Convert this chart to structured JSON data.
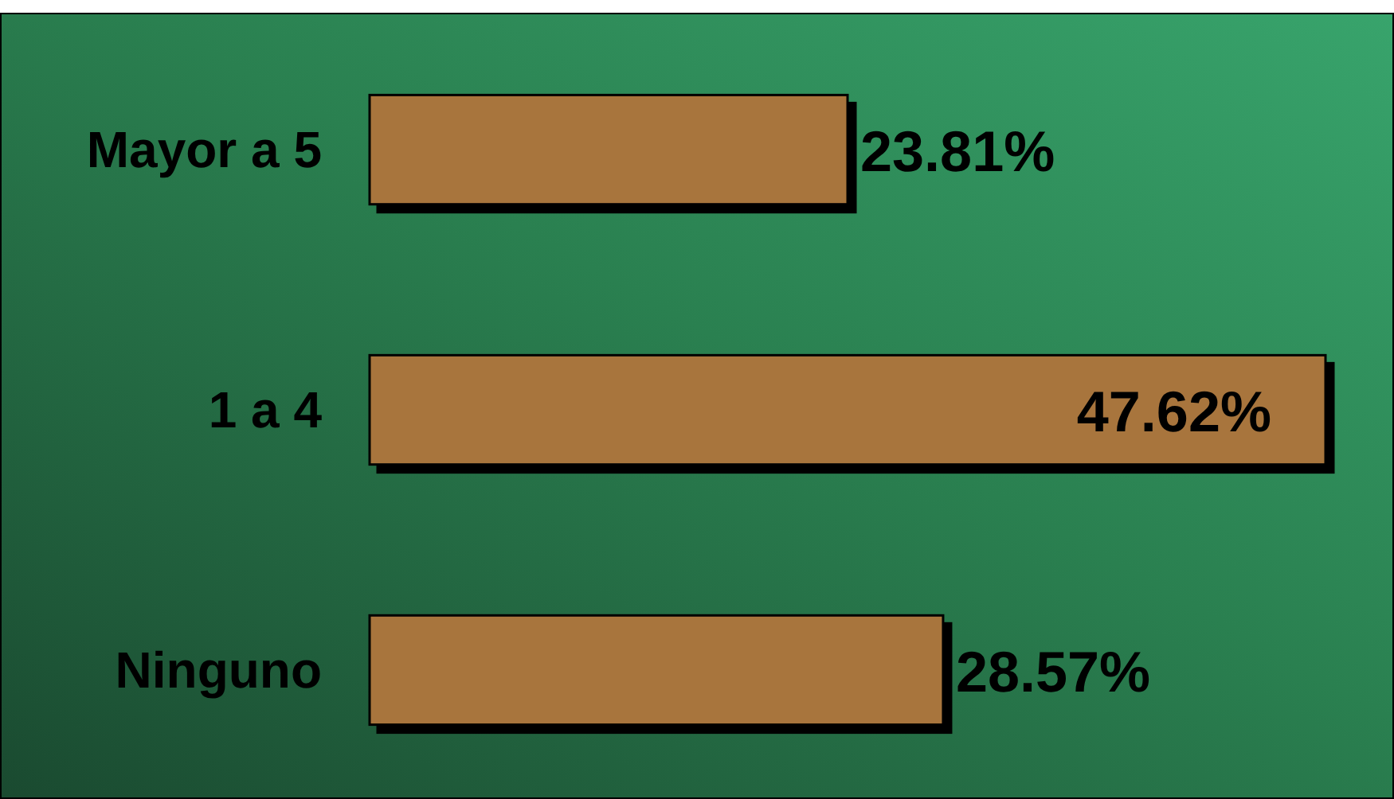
{
  "chart_data": {
    "type": "bar",
    "orientation": "horizontal",
    "categories": [
      "Mayor a 5",
      "1 a 4",
      "Ninguno"
    ],
    "values": [
      23.81,
      47.62,
      28.57
    ],
    "value_labels": [
      "23.81%",
      "47.62%",
      "28.57%"
    ],
    "color": "#a8743c"
  }
}
